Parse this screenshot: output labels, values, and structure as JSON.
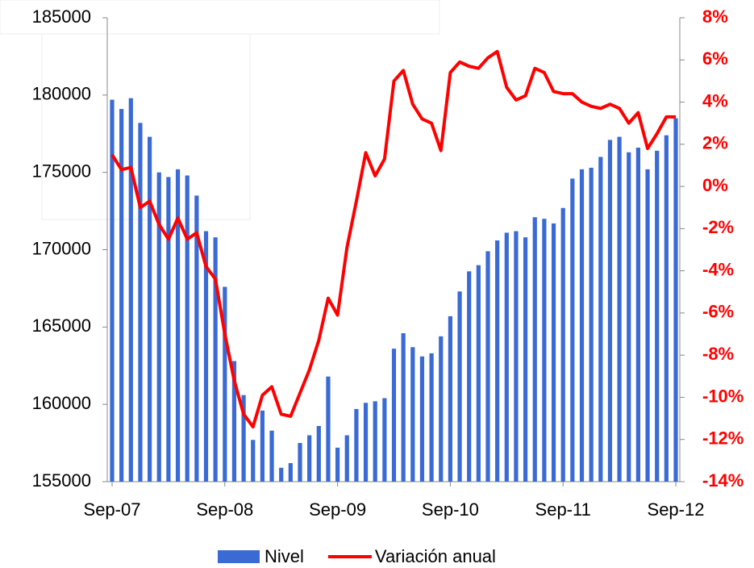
{
  "chart_data": {
    "type": "bar_line",
    "categories": [
      "Sep-07",
      null,
      null,
      null,
      null,
      null,
      null,
      null,
      null,
      null,
      null,
      null,
      "Sep-08",
      null,
      null,
      null,
      null,
      null,
      null,
      null,
      null,
      null,
      null,
      null,
      "Sep-09",
      null,
      null,
      null,
      null,
      null,
      null,
      null,
      null,
      null,
      null,
      null,
      "Sep-10",
      null,
      null,
      null,
      null,
      null,
      null,
      null,
      null,
      null,
      null,
      null,
      "Sep-11",
      null,
      null,
      null,
      null,
      null,
      null,
      null,
      null,
      null,
      null,
      null,
      "Sep-12"
    ],
    "series": [
      {
        "name": "Nivel",
        "type": "bar",
        "color": "#3a6ad4",
        "values": [
          179700,
          179100,
          179800,
          178200,
          177300,
          175000,
          174700,
          175200,
          174800,
          173500,
          171200,
          170800,
          167600,
          162800,
          160600,
          157700,
          159600,
          158300,
          155900,
          156200,
          157500,
          158000,
          158600,
          161800,
          157200,
          158000,
          159700,
          160100,
          160200,
          160400,
          163600,
          164600,
          163700,
          163100,
          163300,
          164400,
          165700,
          167300,
          168600,
          169000,
          169900,
          170600,
          171100,
          171200,
          170800,
          172100,
          172000,
          171700,
          172700,
          174600,
          175200,
          175300,
          176000,
          177100,
          177300,
          176300,
          176600,
          175200,
          176400,
          177400,
          178500
        ]
      },
      {
        "name": "Variación anual",
        "type": "line",
        "axis": "y2",
        "color": "#ff0000",
        "values": [
          1.5,
          0.8,
          0.9,
          -1.0,
          -0.7,
          -1.8,
          -2.5,
          -1.5,
          -2.5,
          -2.2,
          -3.8,
          -4.4,
          -7.0,
          -9.2,
          -10.8,
          -11.4,
          -9.9,
          -9.5,
          -10.8,
          -10.9,
          -9.8,
          -8.7,
          -7.3,
          -5.3,
          -6.1,
          -2.9,
          -0.7,
          1.6,
          0.5,
          1.3,
          5.0,
          5.5,
          3.9,
          3.2,
          3.0,
          1.7,
          5.4,
          5.9,
          5.7,
          5.6,
          6.1,
          6.4,
          4.7,
          4.1,
          4.3,
          5.6,
          5.4,
          4.5,
          4.4,
          4.4,
          4.0,
          3.8,
          3.7,
          3.9,
          3.7,
          3.0,
          3.5,
          1.8,
          2.5,
          3.3,
          3.3
        ]
      }
    ],
    "ylim": [
      155000,
      185000
    ],
    "yticks": [
      155000,
      160000,
      165000,
      170000,
      175000,
      180000,
      185000
    ],
    "y2lim": [
      -14,
      8
    ],
    "y2ticks": [
      {
        "value": -14,
        "label": "-14%"
      },
      {
        "value": -12,
        "label": "-12%"
      },
      {
        "value": -10,
        "label": "-10%"
      },
      {
        "value": -8,
        "label": "-8%"
      },
      {
        "value": -6,
        "label": "-6%"
      },
      {
        "value": -4,
        "label": "-4%"
      },
      {
        "value": -2,
        "label": "-2%"
      },
      {
        "value": 0,
        "label": "0%"
      },
      {
        "value": 2,
        "label": "2%"
      },
      {
        "value": 4,
        "label": "4%"
      },
      {
        "value": 6,
        "label": "6%"
      },
      {
        "value": 8,
        "label": "8%"
      }
    ],
    "y2color": "#ff0000"
  }
}
